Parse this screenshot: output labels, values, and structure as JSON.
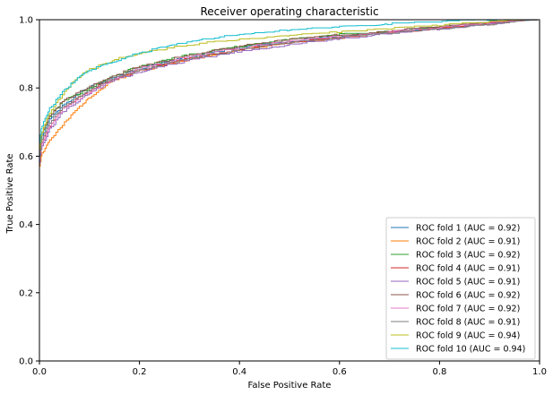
{
  "chart_data": {
    "type": "line",
    "title": "Receiver operating characteristic",
    "xlabel": "False Positive Rate",
    "ylabel": "True Positive Rate",
    "xlim": [
      0,
      1
    ],
    "ylim": [
      0,
      1
    ],
    "x_ticks": [
      "0.0",
      "0.2",
      "0.4",
      "0.6",
      "0.8",
      "1.0"
    ],
    "y_ticks": [
      "0.0",
      "0.2",
      "0.4",
      "0.6",
      "0.8",
      "1.0"
    ],
    "grid": false,
    "legend_position": "lower-right",
    "series": [
      {
        "name": "ROC fold 1 (AUC = 0.92)",
        "color": "#1f77b4",
        "points": [
          [
            0,
            0
          ],
          [
            0,
            0.58
          ],
          [
            0.005,
            0.65
          ],
          [
            0.02,
            0.7
          ],
          [
            0.05,
            0.75
          ],
          [
            0.1,
            0.8
          ],
          [
            0.15,
            0.83
          ],
          [
            0.2,
            0.855
          ],
          [
            0.3,
            0.89
          ],
          [
            0.4,
            0.915
          ],
          [
            0.5,
            0.935
          ],
          [
            0.6,
            0.95
          ],
          [
            0.7,
            0.963
          ],
          [
            0.8,
            0.975
          ],
          [
            0.9,
            0.988
          ],
          [
            1,
            1
          ]
        ]
      },
      {
        "name": "ROC fold 2 (AUC = 0.91)",
        "color": "#ff7f0e",
        "points": [
          [
            0,
            0
          ],
          [
            0,
            0.56
          ],
          [
            0.005,
            0.6
          ],
          [
            0.02,
            0.64
          ],
          [
            0.05,
            0.69
          ],
          [
            0.08,
            0.74
          ],
          [
            0.1,
            0.77
          ],
          [
            0.15,
            0.82
          ],
          [
            0.2,
            0.85
          ],
          [
            0.3,
            0.88
          ],
          [
            0.4,
            0.91
          ],
          [
            0.5,
            0.93
          ],
          [
            0.6,
            0.945
          ],
          [
            0.7,
            0.96
          ],
          [
            0.8,
            0.972
          ],
          [
            0.9,
            0.985
          ],
          [
            1,
            1
          ]
        ]
      },
      {
        "name": "ROC fold 3 (AUC = 0.92)",
        "color": "#2ca02c",
        "points": [
          [
            0,
            0
          ],
          [
            0,
            0.59
          ],
          [
            0.005,
            0.66
          ],
          [
            0.02,
            0.71
          ],
          [
            0.05,
            0.76
          ],
          [
            0.1,
            0.795
          ],
          [
            0.15,
            0.835
          ],
          [
            0.2,
            0.86
          ],
          [
            0.3,
            0.895
          ],
          [
            0.4,
            0.92
          ],
          [
            0.5,
            0.94
          ],
          [
            0.6,
            0.955
          ],
          [
            0.7,
            0.966
          ],
          [
            0.8,
            0.977
          ],
          [
            0.9,
            0.989
          ],
          [
            1,
            1
          ]
        ]
      },
      {
        "name": "ROC fold 4 (AUC = 0.91)",
        "color": "#d62728",
        "points": [
          [
            0,
            0
          ],
          [
            0,
            0.57
          ],
          [
            0.005,
            0.63
          ],
          [
            0.02,
            0.68
          ],
          [
            0.05,
            0.74
          ],
          [
            0.1,
            0.79
          ],
          [
            0.15,
            0.825
          ],
          [
            0.2,
            0.85
          ],
          [
            0.3,
            0.885
          ],
          [
            0.4,
            0.91
          ],
          [
            0.5,
            0.93
          ],
          [
            0.6,
            0.947
          ],
          [
            0.7,
            0.961
          ],
          [
            0.8,
            0.973
          ],
          [
            0.9,
            0.986
          ],
          [
            1,
            1
          ]
        ]
      },
      {
        "name": "ROC fold 5 (AUC = 0.91)",
        "color": "#9467bd",
        "points": [
          [
            0,
            0
          ],
          [
            0,
            0.56
          ],
          [
            0.005,
            0.62
          ],
          [
            0.02,
            0.67
          ],
          [
            0.05,
            0.73
          ],
          [
            0.1,
            0.78
          ],
          [
            0.15,
            0.82
          ],
          [
            0.2,
            0.845
          ],
          [
            0.3,
            0.88
          ],
          [
            0.4,
            0.905
          ],
          [
            0.5,
            0.925
          ],
          [
            0.6,
            0.942
          ],
          [
            0.7,
            0.958
          ],
          [
            0.8,
            0.97
          ],
          [
            0.9,
            0.984
          ],
          [
            1,
            1
          ]
        ]
      },
      {
        "name": "ROC fold 6 (AUC = 0.92)",
        "color": "#8c564b",
        "points": [
          [
            0,
            0
          ],
          [
            0,
            0.6
          ],
          [
            0.005,
            0.66
          ],
          [
            0.02,
            0.71
          ],
          [
            0.05,
            0.76
          ],
          [
            0.1,
            0.8
          ],
          [
            0.15,
            0.835
          ],
          [
            0.2,
            0.86
          ],
          [
            0.3,
            0.895
          ],
          [
            0.4,
            0.92
          ],
          [
            0.5,
            0.94
          ],
          [
            0.6,
            0.954
          ],
          [
            0.7,
            0.966
          ],
          [
            0.8,
            0.978
          ],
          [
            0.9,
            0.99
          ],
          [
            1,
            1
          ]
        ]
      },
      {
        "name": "ROC fold 7 (AUC = 0.92)",
        "color": "#e377c2",
        "points": [
          [
            0,
            0
          ],
          [
            0,
            0.58
          ],
          [
            0.005,
            0.63
          ],
          [
            0.02,
            0.68
          ],
          [
            0.05,
            0.74
          ],
          [
            0.1,
            0.785
          ],
          [
            0.15,
            0.825
          ],
          [
            0.2,
            0.855
          ],
          [
            0.3,
            0.89
          ],
          [
            0.4,
            0.915
          ],
          [
            0.5,
            0.935
          ],
          [
            0.6,
            0.95
          ],
          [
            0.7,
            0.963
          ],
          [
            0.8,
            0.975
          ],
          [
            0.9,
            0.988
          ],
          [
            1,
            1
          ]
        ]
      },
      {
        "name": "ROC fold 8 (AUC = 0.91)",
        "color": "#7f7f7f",
        "points": [
          [
            0,
            0
          ],
          [
            0,
            0.57
          ],
          [
            0.005,
            0.64
          ],
          [
            0.02,
            0.69
          ],
          [
            0.05,
            0.745
          ],
          [
            0.1,
            0.79
          ],
          [
            0.15,
            0.825
          ],
          [
            0.2,
            0.85
          ],
          [
            0.3,
            0.885
          ],
          [
            0.4,
            0.91
          ],
          [
            0.5,
            0.93
          ],
          [
            0.6,
            0.946
          ],
          [
            0.7,
            0.96
          ],
          [
            0.8,
            0.972
          ],
          [
            0.9,
            0.985
          ],
          [
            1,
            1
          ]
        ]
      },
      {
        "name": "ROC fold 9 (AUC = 0.94)",
        "color": "#bcbd22",
        "points": [
          [
            0,
            0
          ],
          [
            0,
            0.6
          ],
          [
            0.005,
            0.66
          ],
          [
            0.02,
            0.72
          ],
          [
            0.05,
            0.78
          ],
          [
            0.08,
            0.83
          ],
          [
            0.1,
            0.85
          ],
          [
            0.15,
            0.88
          ],
          [
            0.2,
            0.9
          ],
          [
            0.3,
            0.925
          ],
          [
            0.4,
            0.94
          ],
          [
            0.5,
            0.952
          ],
          [
            0.6,
            0.962
          ],
          [
            0.7,
            0.972
          ],
          [
            0.8,
            0.982
          ],
          [
            0.9,
            0.992
          ],
          [
            1,
            1
          ]
        ]
      },
      {
        "name": "ROC fold 10 (AUC = 0.94)",
        "color": "#17becf",
        "points": [
          [
            0,
            0
          ],
          [
            0,
            0.62
          ],
          [
            0.005,
            0.68
          ],
          [
            0.02,
            0.73
          ],
          [
            0.05,
            0.79
          ],
          [
            0.08,
            0.83
          ],
          [
            0.1,
            0.85
          ],
          [
            0.15,
            0.875
          ],
          [
            0.2,
            0.9
          ],
          [
            0.3,
            0.935
          ],
          [
            0.4,
            0.955
          ],
          [
            0.5,
            0.968
          ],
          [
            0.6,
            0.978
          ],
          [
            0.7,
            0.986
          ],
          [
            0.8,
            0.993
          ],
          [
            0.9,
            0.998
          ],
          [
            1,
            1
          ]
        ]
      }
    ]
  }
}
